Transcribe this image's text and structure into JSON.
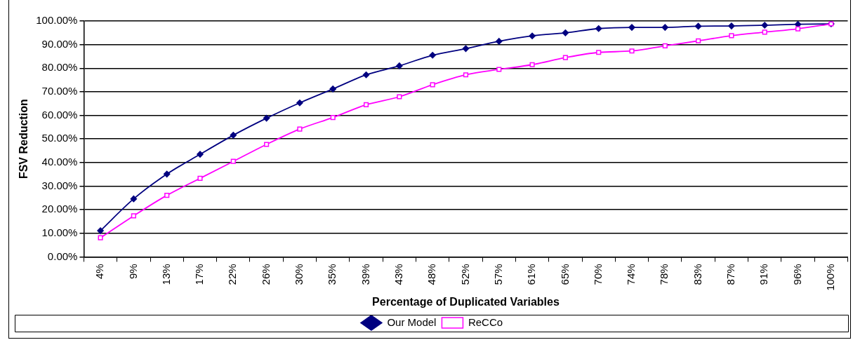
{
  "chart_data": {
    "type": "line",
    "xlabel": "Percentage of Duplicated Variables",
    "ylabel": "FSV Reduction",
    "categories": [
      "4%",
      "9%",
      "13%",
      "17%",
      "22%",
      "26%",
      "30%",
      "35%",
      "39%",
      "43%",
      "48%",
      "52%",
      "57%",
      "61%",
      "65%",
      "70%",
      "74%",
      "78%",
      "83%",
      "87%",
      "91%",
      "96%",
      "100%"
    ],
    "series": [
      {
        "name": "Our Model",
        "color": "#000080",
        "marker": "diamond",
        "values": [
          11.1,
          24.6,
          35.1,
          43.5,
          51.6,
          58.8,
          65.3,
          71.2,
          77.2,
          81.0,
          85.5,
          88.3,
          91.4,
          93.7,
          95.0,
          96.8,
          97.3,
          97.3,
          97.8,
          97.9,
          98.2,
          98.6,
          98.8
        ]
      },
      {
        "name": "ReCCo",
        "color": "#ff00ff",
        "marker": "square",
        "values": [
          8.1,
          17.4,
          26.1,
          33.3,
          40.5,
          47.7,
          54.2,
          59.1,
          64.5,
          67.9,
          73.0,
          77.2,
          79.5,
          81.5,
          84.5,
          86.7,
          87.3,
          89.5,
          91.6,
          93.8,
          95.3,
          96.7,
          98.8
        ]
      }
    ],
    "ylim": [
      0,
      100
    ],
    "yticks": [
      {
        "value": 0,
        "label": "0.00%"
      },
      {
        "value": 10,
        "label": "10.00%"
      },
      {
        "value": 20,
        "label": "20.00%"
      },
      {
        "value": 30,
        "label": "30.00%"
      },
      {
        "value": 40,
        "label": "40.00%"
      },
      {
        "value": 50,
        "label": "50.00%"
      },
      {
        "value": 60,
        "label": "60.00%"
      },
      {
        "value": 70,
        "label": "70.00%"
      },
      {
        "value": 80,
        "label": "80.00%"
      },
      {
        "value": 90,
        "label": "90.00%"
      },
      {
        "value": 100,
        "label": "100.00%"
      }
    ],
    "grid": "y",
    "legend": "bottom",
    "line_style": "solid"
  }
}
